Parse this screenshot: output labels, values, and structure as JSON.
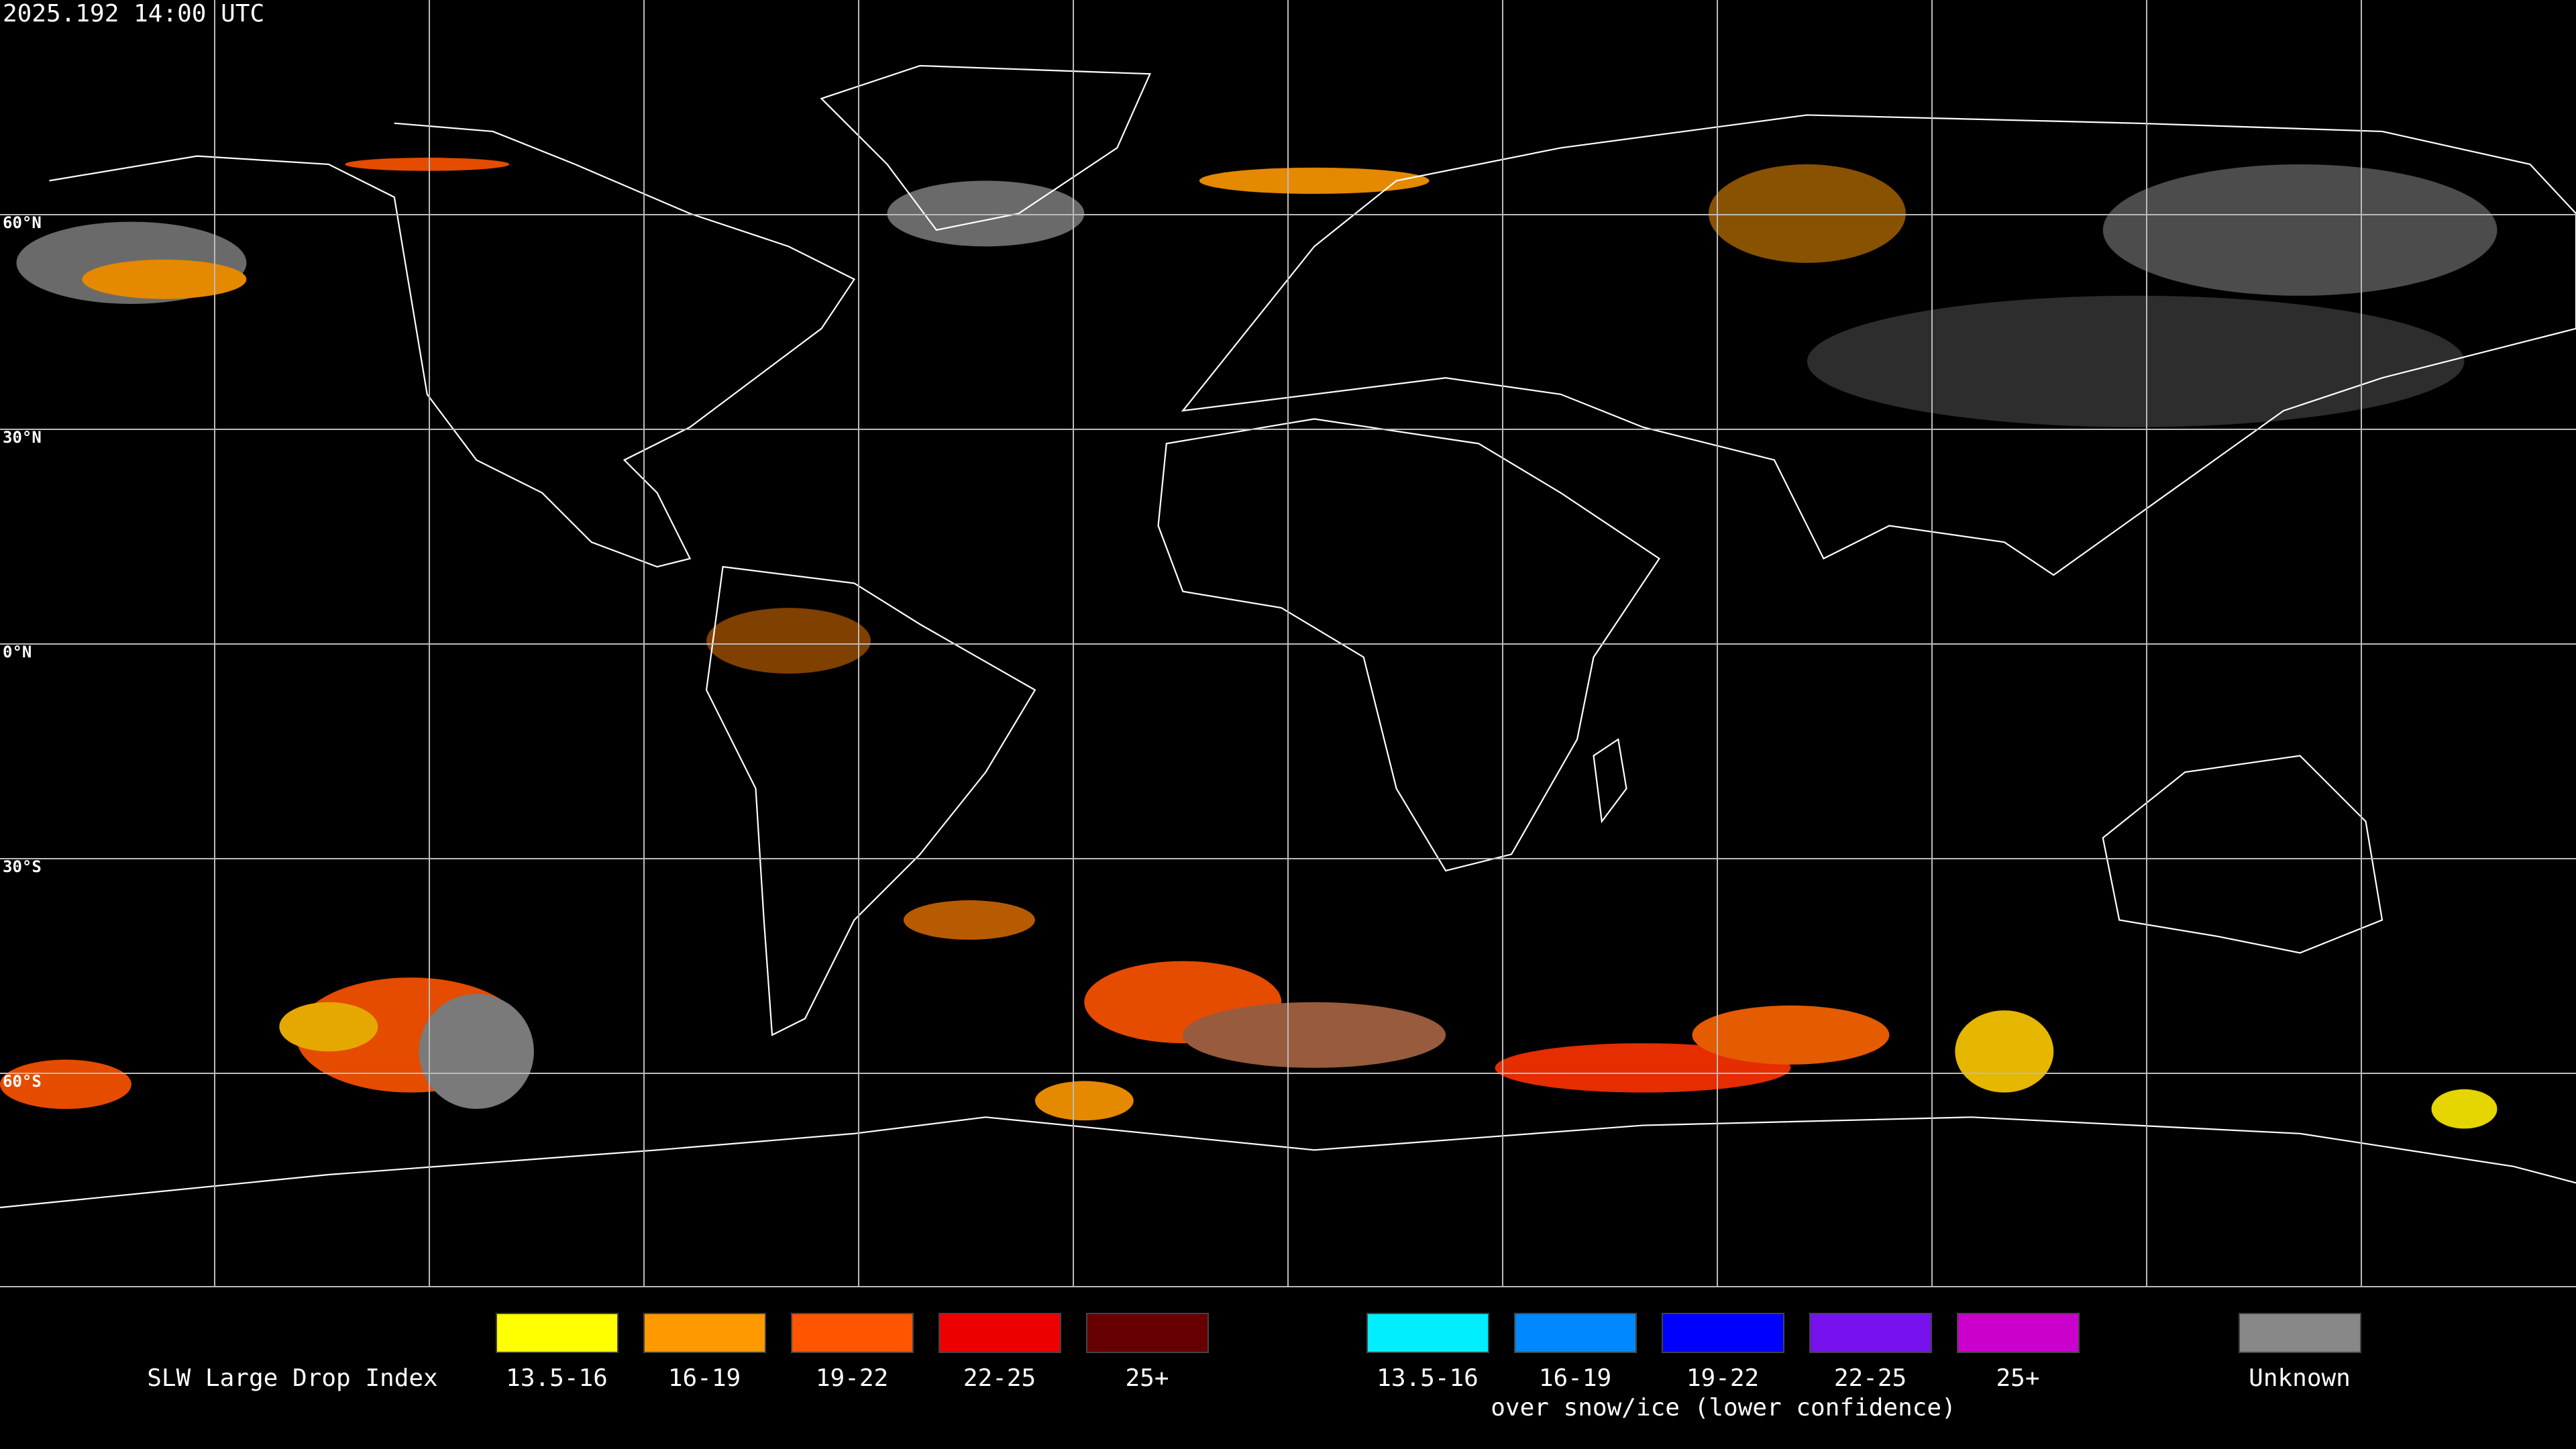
{
  "title": "2025.192 14:00 UTC",
  "latitude_labels": [
    "60°N",
    "30°N",
    "0°N",
    "30°S",
    "60°S"
  ],
  "legend": {
    "title": "SLW Large Drop Index",
    "items": [
      {
        "label": "13.5-16",
        "color": "#ffff00"
      },
      {
        "label": "16-19",
        "color": "#ff9900"
      },
      {
        "label": "19-22",
        "color": "#ff5500"
      },
      {
        "label": "22-25",
        "color": "#ee0000"
      },
      {
        "label": "25+",
        "color": "#660000"
      }
    ],
    "snow_items": [
      {
        "label": "13.5-16",
        "color": "#00eeff"
      },
      {
        "label": "16-19",
        "color": "#0088ff"
      },
      {
        "label": "19-22",
        "color": "#0000ff"
      },
      {
        "label": "22-25",
        "color": "#7711ee"
      },
      {
        "label": "25+",
        "color": "#cc00cc"
      }
    ],
    "snow_caption": "over snow/ice (lower confidence)",
    "unknown": {
      "label": "Unknown",
      "color": "#888888"
    }
  }
}
